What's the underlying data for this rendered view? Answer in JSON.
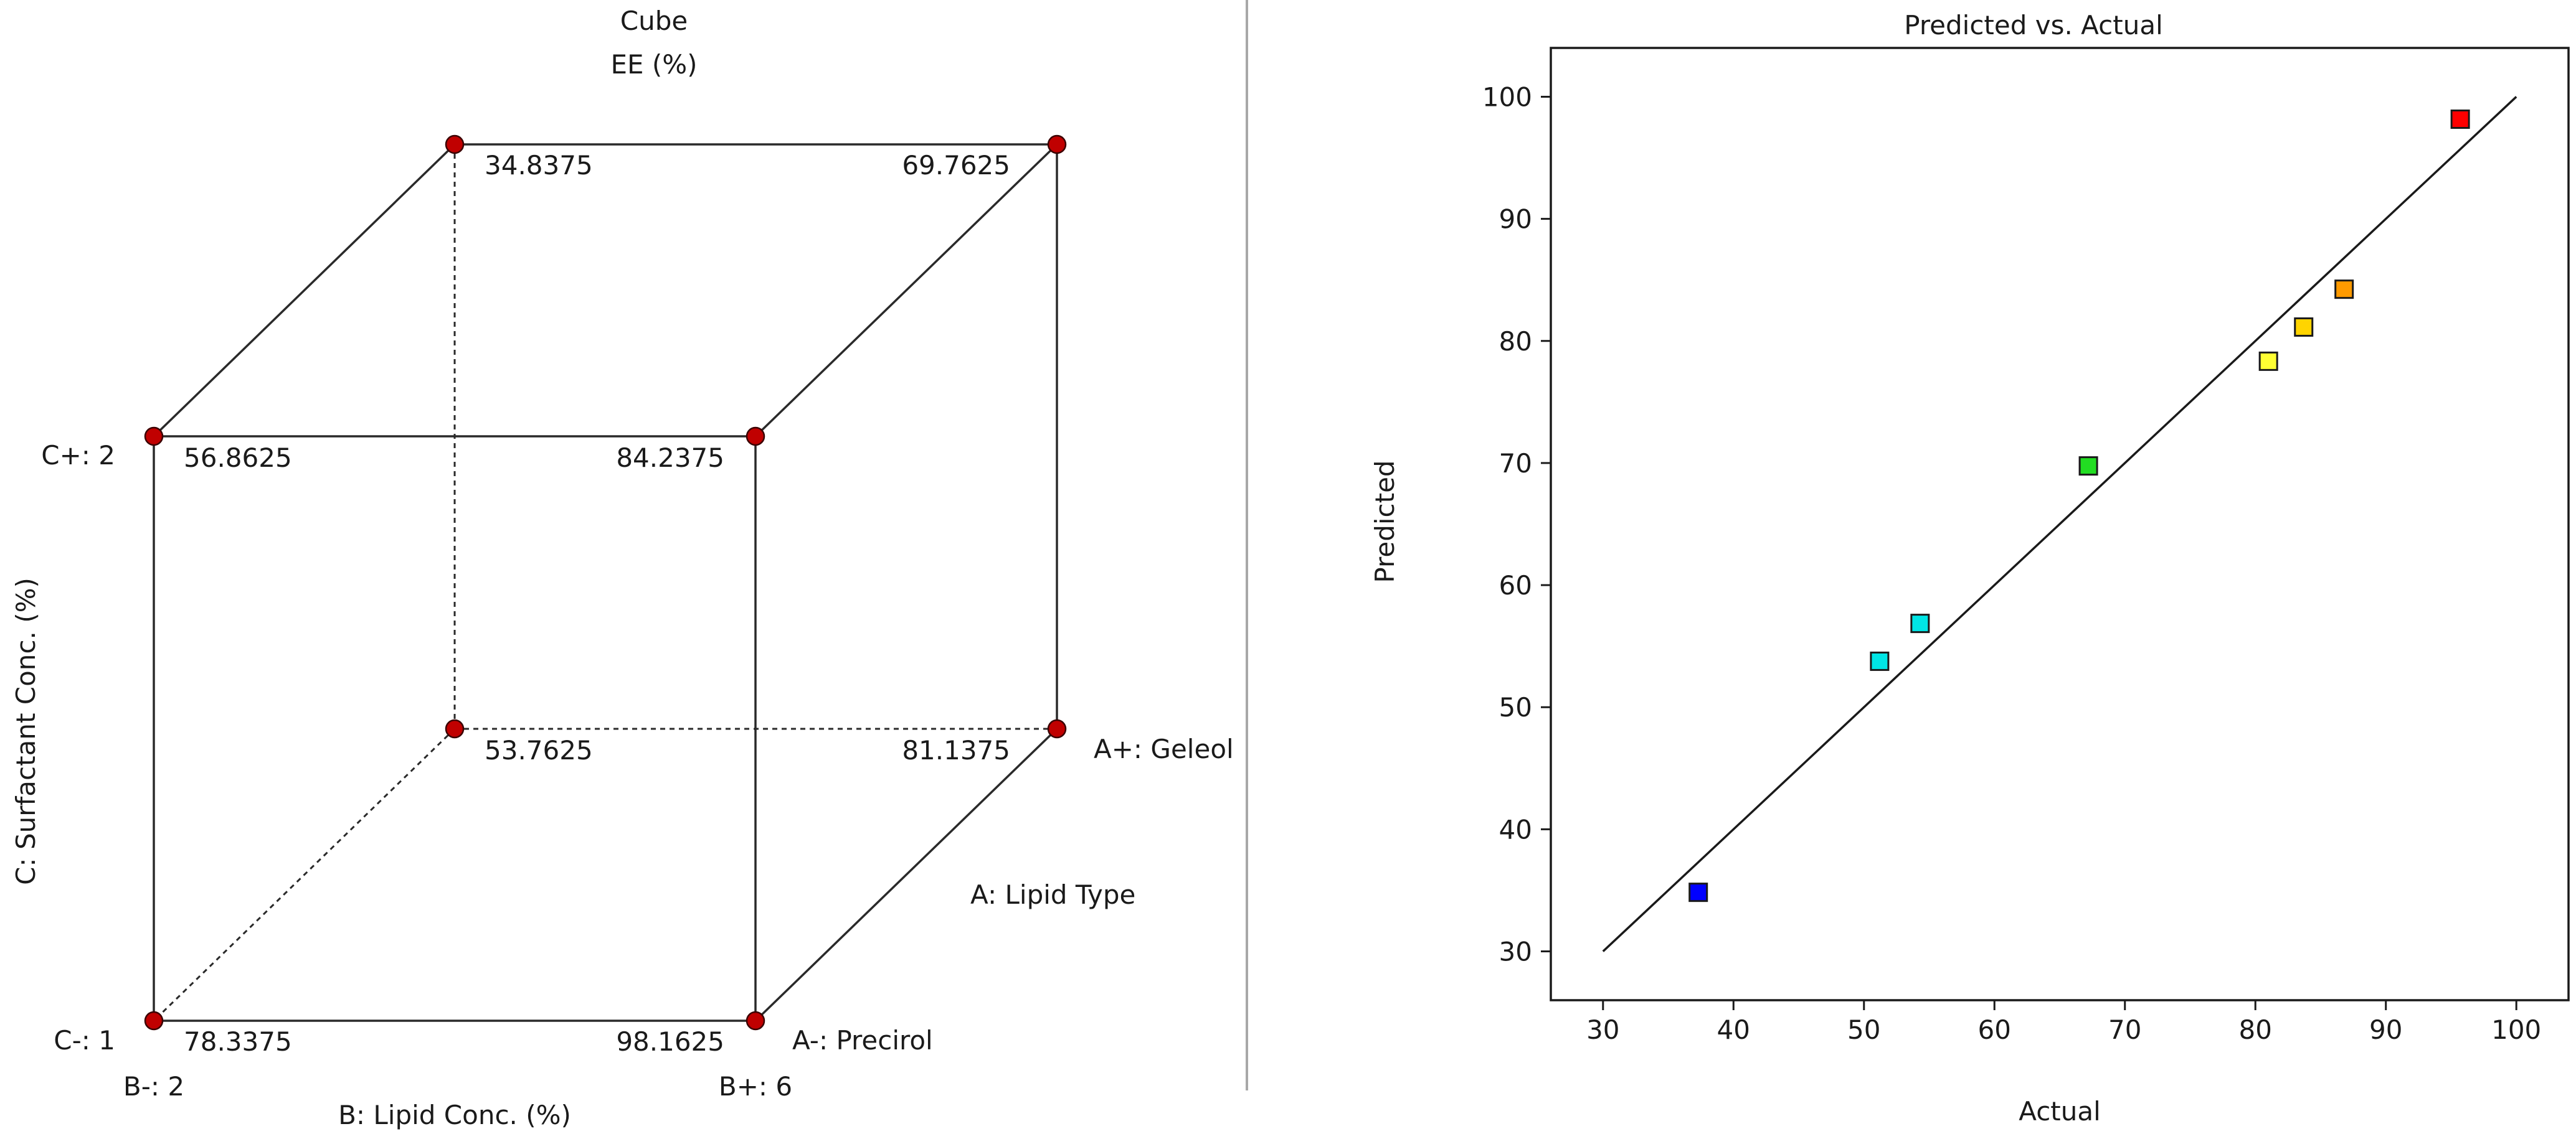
{
  "cube_panel": {
    "title": "Cube",
    "response": "EE (%)",
    "axis_a": {
      "label": "A: Lipid Type",
      "low": "A-: Precirol",
      "high": "A+: Geleol"
    },
    "axis_b": {
      "label": "B: Lipid Conc. (%)",
      "low": "B-: 2",
      "high": "B+: 6"
    },
    "axis_c": {
      "label": "C: Surfactant Conc. (%)",
      "low": "C-: 1",
      "high": "C+: 2"
    },
    "corners": {
      "front_bottom_left": "78.3375",
      "front_bottom_right": "98.1625",
      "front_top_left": "56.8625",
      "front_top_right": "84.2375",
      "back_bottom_left": "53.7625",
      "back_bottom_right": "81.1375",
      "back_top_left": "34.8375",
      "back_top_right": "69.7625"
    },
    "point_color": "#c00000"
  },
  "chart_data": {
    "type": "scatter",
    "title": "Predicted vs. Actual",
    "xlabel": "Actual",
    "ylabel": "Predicted",
    "xlim": [
      26,
      104
    ],
    "ylim": [
      26,
      104
    ],
    "xticks": [
      30,
      40,
      50,
      60,
      70,
      80,
      90,
      100
    ],
    "yticks": [
      30,
      40,
      50,
      60,
      70,
      80,
      90,
      100
    ],
    "reference_line": [
      [
        30,
        30
      ],
      [
        100,
        100
      ]
    ],
    "points": [
      {
        "x": 37.3,
        "y": 34.8375,
        "color": "#0000ff"
      },
      {
        "x": 51.2,
        "y": 53.7625,
        "color": "#00e5e5"
      },
      {
        "x": 54.3,
        "y": 56.8625,
        "color": "#00e5e5"
      },
      {
        "x": 67.2,
        "y": 69.7625,
        "color": "#22dd22"
      },
      {
        "x": 81.0,
        "y": 78.3375,
        "color": "#ffff33"
      },
      {
        "x": 83.7,
        "y": 81.1375,
        "color": "#ffd400"
      },
      {
        "x": 86.8,
        "y": 84.2375,
        "color": "#ff9a00"
      },
      {
        "x": 95.7,
        "y": 98.1625,
        "color": "#ff0000"
      }
    ]
  }
}
